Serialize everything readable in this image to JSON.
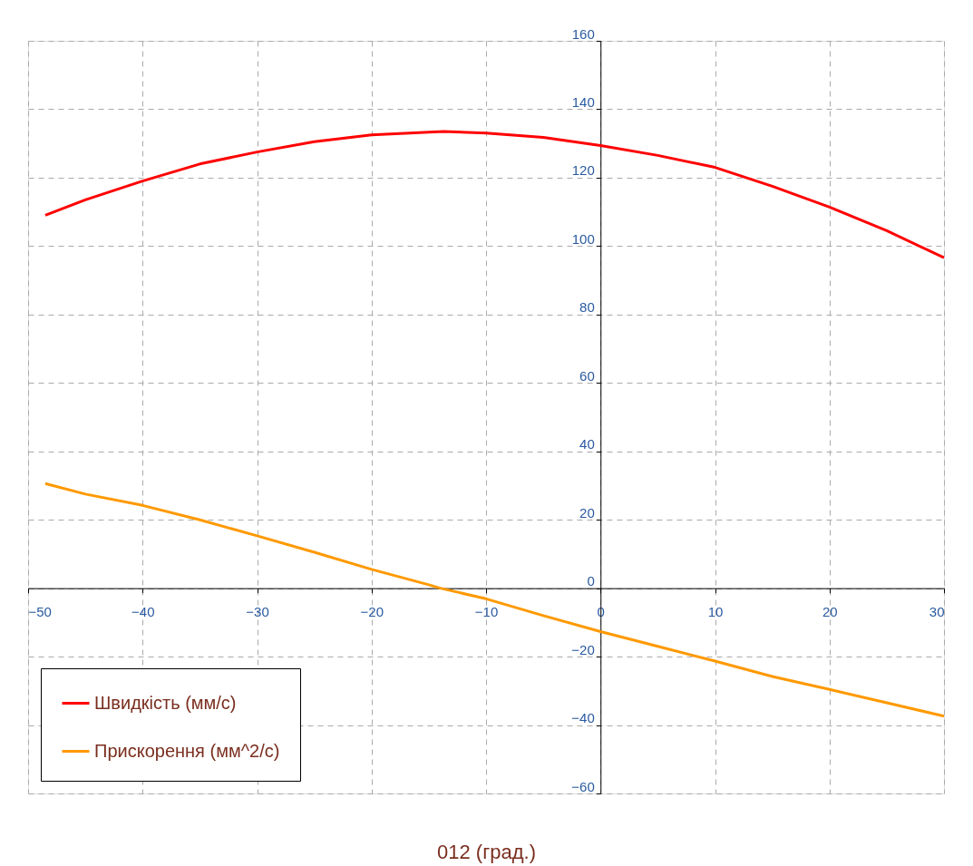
{
  "chart_data": {
    "type": "line",
    "xlabel": "012 (град.)",
    "series": [
      {
        "name": "Швидкість (мм/с)",
        "color": "#ff0000",
        "x": [
          -48.5,
          -45,
          -40,
          -35,
          -30,
          -25,
          -20,
          -15,
          -13.7,
          -10,
          -5,
          0,
          5,
          10,
          15,
          20,
          25,
          30
        ],
        "values": [
          109,
          113.5,
          119,
          124,
          127.5,
          130.5,
          132.5,
          133.3,
          133.5,
          133,
          131.8,
          129.4,
          126.5,
          123,
          117.5,
          111.4,
          104.5,
          96.6
        ]
      },
      {
        "name": "Прискорення (мм^2/с)",
        "color": "#ff9900",
        "x": [
          -48.5,
          -45,
          -40,
          -35,
          -30,
          -25,
          -20,
          -15,
          -14,
          -10,
          -5,
          0,
          5,
          10,
          15,
          20,
          25,
          30
        ],
        "values": [
          30.6,
          27.5,
          24.2,
          20,
          15.3,
          10.5,
          5.5,
          1,
          0,
          -3.1,
          -8,
          -12.7,
          -17,
          -21.3,
          -25.8,
          -29.6,
          -33.5,
          -37.4
        ]
      }
    ],
    "xlim": [
      -50,
      30
    ],
    "ylim": [
      -60,
      160
    ],
    "xticks": [
      -50,
      -40,
      -30,
      -20,
      -10,
      0,
      10,
      20,
      30
    ],
    "yticks": [
      -60,
      -40,
      -20,
      0,
      20,
      40,
      60,
      80,
      100,
      120,
      140,
      160
    ],
    "grid": true,
    "legend": "bottom left",
    "line_style": "solid"
  }
}
